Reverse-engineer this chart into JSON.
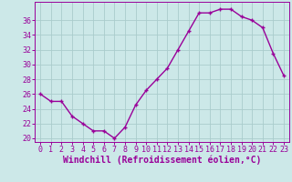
{
  "hours": [
    0,
    1,
    2,
    3,
    4,
    5,
    6,
    7,
    8,
    9,
    10,
    11,
    12,
    13,
    14,
    15,
    16,
    17,
    18,
    19,
    20,
    21,
    22,
    23
  ],
  "values": [
    26,
    25,
    25,
    23,
    22,
    21,
    21,
    20,
    21.5,
    24.5,
    26.5,
    28,
    29.5,
    32,
    34.5,
    37,
    37,
    37.5,
    37.5,
    36.5,
    36,
    35,
    31.5,
    28.5
  ],
  "line_color": "#990099",
  "marker": "+",
  "bg_color": "#cce8e8",
  "grid_color": "#aacccc",
  "xlabel": "Windchill (Refroidissement éolien,°C)",
  "ylim": [
    19.5,
    38.5
  ],
  "yticks": [
    20,
    22,
    24,
    26,
    28,
    30,
    32,
    34,
    36
  ],
  "xticks": [
    0,
    1,
    2,
    3,
    4,
    5,
    6,
    7,
    8,
    9,
    10,
    11,
    12,
    13,
    14,
    15,
    16,
    17,
    18,
    19,
    20,
    21,
    22,
    23
  ],
  "tick_fontsize": 6.0,
  "xlabel_fontsize": 7.0,
  "line_width": 1.0,
  "marker_size": 3.5
}
